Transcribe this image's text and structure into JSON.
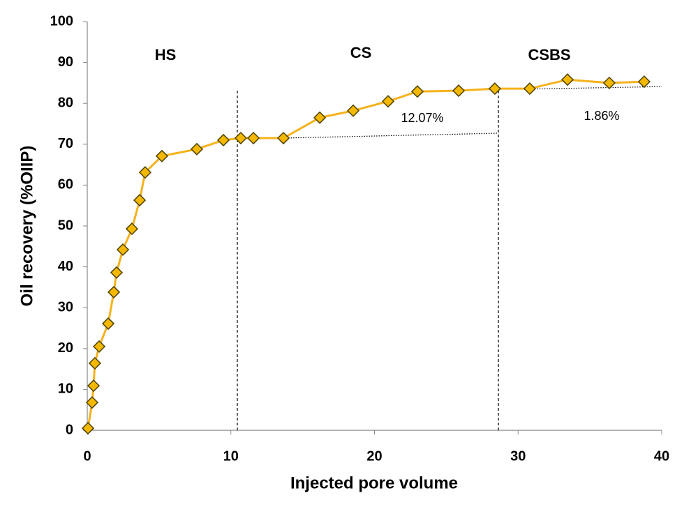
{
  "chart_data": {
    "type": "line",
    "x_label": "Injected pore volume",
    "y_label": "Oil recovery (%OIIP)",
    "x": [
      0.05,
      0.34,
      0.44,
      0.53,
      0.83,
      1.46,
      1.85,
      2.04,
      2.48,
      3.11,
      3.65,
      4.03,
      5.2,
      7.63,
      9.48,
      10.69,
      11.57,
      13.66,
      16.19,
      18.52,
      20.95,
      22.99,
      25.86,
      28.38,
      30.81,
      33.44,
      36.35,
      38.78
    ],
    "values": [
      0.5,
      6.8,
      10.9,
      16.4,
      20.5,
      26.1,
      33.8,
      38.6,
      44.2,
      49.3,
      56.3,
      63.1,
      67.1,
      68.8,
      71.0,
      71.5,
      71.5,
      71.5,
      76.5,
      78.2,
      80.5,
      82.9,
      83.1,
      83.6,
      83.6,
      85.8,
      85.0,
      85.3
    ],
    "color": "#f5b21b",
    "marker_color": "#f5b800",
    "marker_edge": "#4d4200",
    "xlim": [
      0,
      40
    ],
    "ylim": [
      0,
      100
    ],
    "xticks": [
      0,
      10,
      20,
      30,
      40
    ],
    "yticks": [
      0,
      10,
      20,
      30,
      40,
      50,
      60,
      70,
      80,
      90,
      100
    ],
    "reference_lines": [
      {
        "x": [
          10.45,
          10.45
        ],
        "y": [
          0,
          83.6
        ],
        "style": "dashed"
      },
      {
        "x": [
          28.63,
          28.63
        ],
        "y": [
          0,
          83.6
        ],
        "style": "dashed"
      },
      {
        "x": [
          13.66,
          28.63
        ],
        "y": [
          71.5,
          72.7
        ],
        "style": "dotted"
      },
      {
        "x": [
          30.8,
          40
        ],
        "y": [
          83.5,
          84.1
        ],
        "style": "dotted"
      }
    ],
    "annotations": [
      "HS",
      "CS",
      "CSBS",
      "12.07%",
      "1.86%"
    ]
  }
}
